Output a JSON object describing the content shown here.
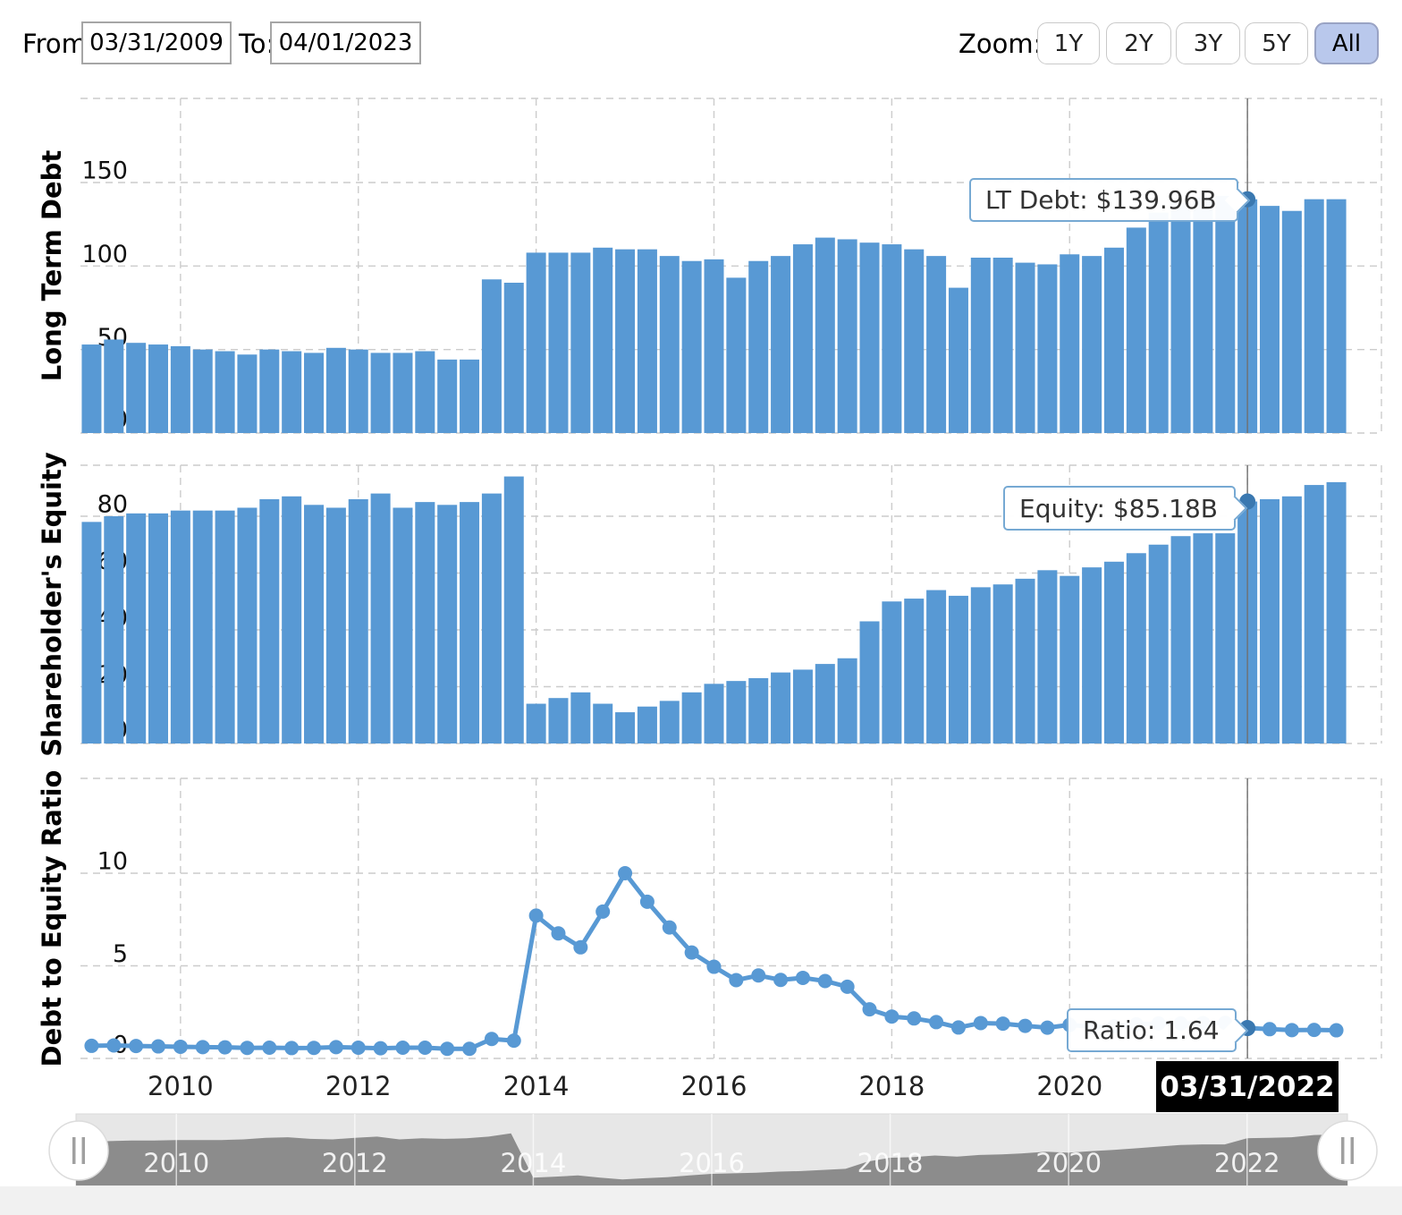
{
  "controls": {
    "from_label": "From:",
    "from_value": "03/31/2009",
    "to_label": "To:",
    "to_value": "04/01/2023",
    "zoom_label": "Zoom:",
    "zoom_buttons": [
      {
        "label": "1Y",
        "active": false
      },
      {
        "label": "2Y",
        "active": false
      },
      {
        "label": "3Y",
        "active": false
      },
      {
        "label": "5Y",
        "active": false
      },
      {
        "label": "All",
        "active": true
      }
    ]
  },
  "tooltips": {
    "lt_debt": "LT Debt: $139.96B",
    "equity": "Equity: $85.18B",
    "ratio": "Ratio: 1.64"
  },
  "crosshair": {
    "index": 52,
    "date_label": "03/31/2022"
  },
  "xaxis": {
    "year_labels": [
      "2010",
      "2012",
      "2014",
      "2016",
      "2018",
      "2020"
    ],
    "navigator_year_labels": [
      "2010",
      "2012",
      "2014",
      "2016",
      "2018",
      "2020",
      "2022"
    ]
  },
  "colors": {
    "bar": "#5899d4",
    "line": "#5899d4",
    "marker": "#3a78b0",
    "grid": "#cccccc",
    "crosshair": "#707070",
    "navigator_dark": "#8c8c8c",
    "navigator_light": "#e7e7e7",
    "tooltip_border": "#76a9d3",
    "active_button_bg": "#b9c8ec",
    "black_label_bg": "#000000"
  },
  "chart_data": {
    "type": "multi-panel",
    "categories": [
      "3/31/2009",
      "6/30/2009",
      "9/30/2009",
      "12/31/2009",
      "3/31/2010",
      "6/30/2010",
      "9/30/2010",
      "12/31/2010",
      "3/31/2011",
      "6/30/2011",
      "9/30/2011",
      "12/31/2011",
      "3/31/2012",
      "6/30/2012",
      "9/30/2012",
      "12/31/2012",
      "3/31/2013",
      "6/30/2013",
      "9/30/2013",
      "12/31/2013",
      "3/31/2014",
      "6/30/2014",
      "9/30/2014",
      "12/31/2014",
      "3/31/2015",
      "6/30/2015",
      "9/30/2015",
      "12/31/2015",
      "3/31/2016",
      "6/30/2016",
      "9/30/2016",
      "12/31/2016",
      "3/31/2017",
      "6/30/2017",
      "9/30/2017",
      "12/31/2017",
      "3/31/2018",
      "6/30/2018",
      "9/30/2018",
      "12/31/2018",
      "3/31/2019",
      "6/30/2019",
      "9/30/2019",
      "12/31/2019",
      "3/31/2020",
      "6/30/2020",
      "9/30/2020",
      "12/31/2020",
      "3/31/2021",
      "6/30/2021",
      "9/30/2021",
      "12/31/2021",
      "3/31/2022",
      "6/30/2022",
      "9/30/2022",
      "12/31/2022",
      "3/31/2023"
    ],
    "panels": [
      {
        "type": "bar",
        "series_name": "LT Debt ($B)",
        "ylabel": "Long Term Debt",
        "yticks": [
          0,
          50,
          100,
          150
        ],
        "ylim": [
          0,
          200
        ],
        "values": [
          53,
          56,
          54,
          53,
          52,
          50,
          49,
          47,
          50,
          49,
          48,
          51,
          50,
          48,
          48,
          49,
          44,
          44,
          92,
          90,
          108,
          108,
          108,
          111,
          110,
          110,
          106,
          103,
          104,
          93,
          103,
          106,
          113,
          117,
          116,
          114,
          113,
          110,
          106,
          87,
          105,
          105,
          102,
          101,
          107,
          106,
          111,
          123,
          132,
          138,
          141,
          142,
          139.96,
          136,
          133,
          140,
          140
        ]
      },
      {
        "type": "bar",
        "series_name": "Equity ($B)",
        "ylabel": "Shareholder's Equity",
        "yticks": [
          0,
          20,
          40,
          60,
          80
        ],
        "ylim": [
          0,
          98
        ],
        "values": [
          78,
          80,
          81,
          81,
          82,
          82,
          82,
          83,
          86,
          87,
          84,
          83,
          86,
          88,
          83,
          85,
          84,
          85,
          88,
          94,
          14,
          16,
          18,
          14,
          11,
          13,
          15,
          18,
          21,
          22,
          23,
          25,
          26,
          28,
          30,
          43,
          50,
          51,
          54,
          52,
          55,
          56,
          58,
          61,
          59,
          62,
          64,
          67,
          70,
          73,
          74,
          74,
          85.18,
          86,
          87,
          91,
          92
        ]
      },
      {
        "type": "line",
        "series_name": "Debt to Equity Ratio",
        "ylabel": "Debt to Equity Ratio",
        "yticks": [
          0,
          5,
          10
        ],
        "ylim": [
          0,
          15
        ],
        "values": [
          0.68,
          0.7,
          0.67,
          0.65,
          0.63,
          0.61,
          0.6,
          0.57,
          0.58,
          0.56,
          0.57,
          0.61,
          0.58,
          0.55,
          0.58,
          0.58,
          0.52,
          0.52,
          1.05,
          0.96,
          7.71,
          6.75,
          6.0,
          7.93,
          10.0,
          8.46,
          7.07,
          5.72,
          4.95,
          4.23,
          4.48,
          4.24,
          4.35,
          4.18,
          3.87,
          2.65,
          2.26,
          2.16,
          1.96,
          1.67,
          1.91,
          1.88,
          1.76,
          1.66,
          1.81,
          1.71,
          1.73,
          1.84,
          1.89,
          1.89,
          1.91,
          1.92,
          1.64,
          1.58,
          1.53,
          1.54,
          1.52
        ]
      }
    ],
    "highlight": {
      "index": 52,
      "date": "03/31/2022",
      "lt_debt": "$139.96B",
      "equity": "$85.18B",
      "ratio": 1.64
    }
  }
}
